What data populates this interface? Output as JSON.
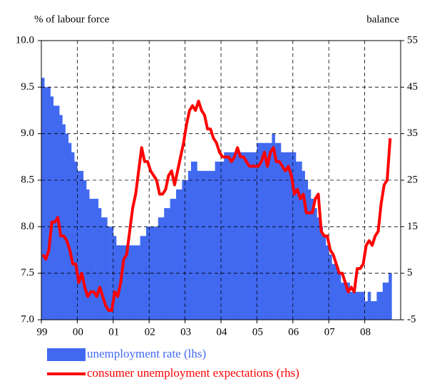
{
  "chart_data": {
    "type": "bar",
    "y_label": "% of labour force",
    "y2_label": "balance",
    "categories": [
      "99",
      null,
      null,
      null,
      null,
      null,
      null,
      null,
      null,
      null,
      null,
      null,
      "00",
      null,
      null,
      null,
      null,
      null,
      null,
      null,
      null,
      null,
      null,
      null,
      "01",
      null,
      null,
      null,
      null,
      null,
      null,
      null,
      null,
      null,
      null,
      null,
      "02",
      null,
      null,
      null,
      null,
      null,
      null,
      null,
      null,
      null,
      null,
      null,
      "03",
      null,
      null,
      null,
      null,
      null,
      null,
      null,
      null,
      null,
      null,
      null,
      "04",
      null,
      null,
      null,
      null,
      null,
      null,
      null,
      null,
      null,
      null,
      null,
      "05",
      null,
      null,
      null,
      null,
      null,
      null,
      null,
      null,
      null,
      null,
      null,
      "06",
      null,
      null,
      null,
      null,
      null,
      null,
      null,
      null,
      null,
      null,
      null,
      "07",
      null,
      null,
      null,
      null,
      null,
      null,
      null,
      null,
      null,
      null,
      null,
      "08",
      null,
      null,
      null,
      null,
      null,
      null,
      null,
      null
    ],
    "series": [
      {
        "name": "unemployment rate (lhs)",
        "type": "bar",
        "color": "#4169f0",
        "axis": "y",
        "values": [
          9.6,
          9.5,
          9.5,
          9.4,
          9.3,
          9.3,
          9.2,
          9.1,
          9.0,
          8.9,
          8.8,
          8.7,
          8.6,
          8.6,
          8.5,
          8.4,
          8.3,
          8.3,
          8.3,
          8.2,
          8.1,
          8.1,
          8.0,
          8.0,
          7.9,
          7.8,
          7.8,
          7.8,
          7.8,
          7.8,
          7.8,
          7.8,
          7.8,
          7.9,
          7.9,
          8.0,
          8.0,
          8.0,
          8.0,
          8.1,
          8.1,
          8.2,
          8.2,
          8.3,
          8.3,
          8.4,
          8.4,
          8.5,
          8.5,
          8.6,
          8.7,
          8.7,
          8.6,
          8.6,
          8.6,
          8.6,
          8.6,
          8.6,
          8.7,
          8.7,
          8.7,
          8.8,
          8.8,
          8.8,
          8.8,
          8.8,
          8.8,
          8.8,
          8.8,
          8.8,
          8.8,
          8.8,
          8.9,
          8.9,
          8.9,
          8.9,
          8.9,
          9.0,
          8.9,
          8.9,
          8.8,
          8.8,
          8.8,
          8.8,
          8.8,
          8.7,
          8.7,
          8.6,
          8.5,
          8.4,
          8.3,
          8.2,
          8.1,
          8.0,
          7.9,
          7.8,
          7.7,
          7.6,
          7.6,
          7.5,
          7.4,
          7.4,
          7.4,
          7.3,
          7.3,
          7.3,
          7.3,
          7.3,
          7.2,
          7.3,
          7.2,
          7.2,
          7.3,
          7.3,
          7.4,
          7.4,
          7.5
        ]
      },
      {
        "name": "consumer unemployment expectations (rhs)",
        "type": "line",
        "color": "#ff0000",
        "axis": "y2",
        "values": [
          9,
          8,
          10,
          16,
          16,
          17,
          13,
          13,
          12,
          10,
          7,
          7,
          3,
          5,
          2,
          0,
          1,
          1,
          0,
          2,
          0,
          -2,
          -3,
          -3,
          1,
          0,
          3,
          8,
          9,
          14,
          19,
          22,
          27,
          32,
          29,
          29,
          27,
          26,
          25,
          22,
          22,
          23,
          26,
          27,
          24,
          27,
          30,
          33,
          37,
          40,
          41,
          40,
          42,
          40,
          39,
          36,
          36,
          34,
          33,
          31,
          30,
          30,
          30,
          29,
          30,
          32,
          30,
          30,
          29,
          28,
          28,
          28,
          28,
          29,
          31,
          28,
          31,
          32,
          29,
          29,
          28,
          27,
          28,
          26,
          22,
          23,
          21,
          22,
          18,
          18,
          18,
          21,
          22,
          14,
          13,
          13,
          10,
          9,
          7,
          5,
          5,
          3,
          1,
          2,
          1,
          6,
          6,
          7,
          11,
          12,
          11,
          13,
          14,
          20,
          24,
          25,
          34
        ]
      }
    ],
    "ylim": [
      7,
      10
    ],
    "yticks": [
      {
        "value": 7,
        "label": "7.0"
      },
      7.5,
      {
        "value": 8,
        "label": "8.0"
      },
      8.5,
      {
        "value": 9,
        "label": "9.0"
      },
      9.5,
      {
        "value": 10,
        "label": "10.0"
      }
    ],
    "y2lim": [
      -5,
      55
    ],
    "y2ticks": [
      -5,
      5,
      15,
      25,
      35,
      45,
      55
    ],
    "grid": true
  }
}
